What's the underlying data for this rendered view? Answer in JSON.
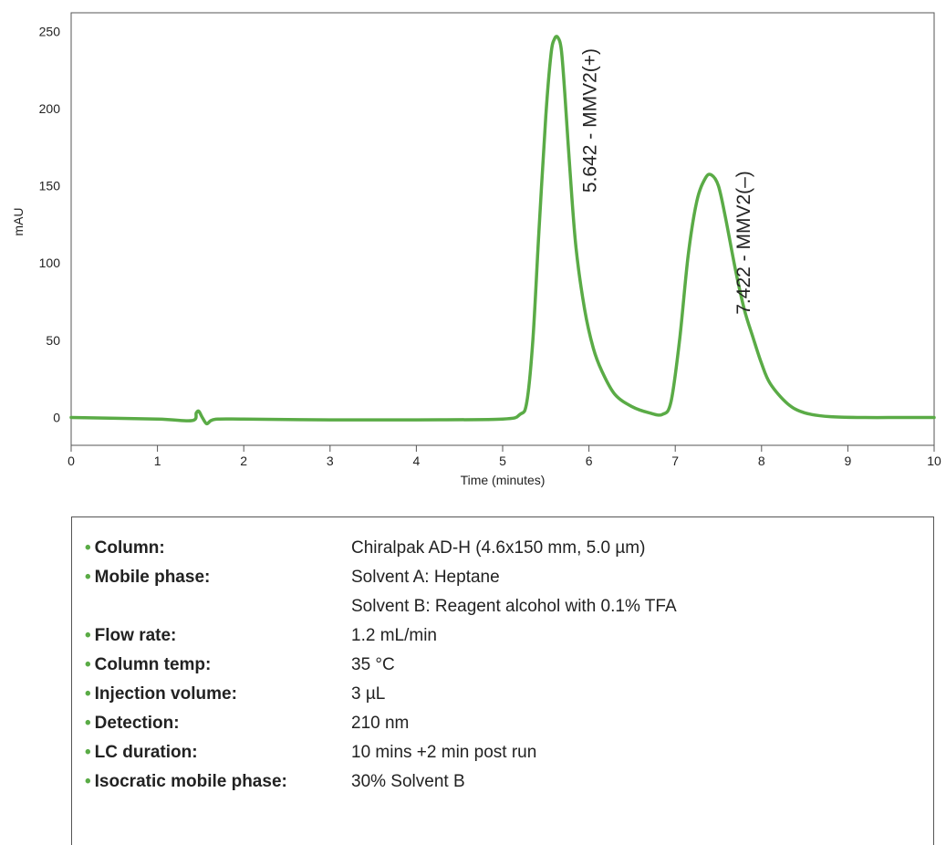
{
  "chart_data": {
    "type": "line",
    "xlabel": "Time (minutes)",
    "ylabel": "mAU",
    "xlim": [
      0,
      10
    ],
    "ylim": [
      -18,
      262
    ],
    "x_ticks": [
      0,
      1,
      2,
      3,
      4,
      5,
      6,
      7,
      8,
      9,
      10
    ],
    "y_ticks": [
      0,
      50,
      100,
      150,
      200,
      250
    ],
    "grid": false,
    "line_color": "#5aab46",
    "series": [
      {
        "x": [
          0,
          1.0,
          1.4,
          1.45,
          1.48,
          1.52,
          1.57,
          1.62,
          1.7,
          2,
          3,
          4,
          5,
          5.2,
          5.28,
          5.35,
          5.42,
          5.5,
          5.56,
          5.6,
          5.64,
          5.68,
          5.72,
          5.78,
          5.85,
          5.95,
          6.05,
          6.15,
          6.3,
          6.5,
          6.7,
          6.85,
          6.95,
          7.05,
          7.15,
          7.25,
          7.35,
          7.42,
          7.5,
          7.58,
          7.7,
          7.8,
          7.9,
          8.0,
          8.1,
          8.3,
          8.5,
          8.8,
          9.2,
          9.6,
          10
        ],
        "y": [
          0,
          -1,
          -2,
          3,
          4,
          0,
          -4,
          -2,
          -1,
          -1,
          -1.5,
          -1.5,
          -1,
          2,
          10,
          50,
          120,
          195,
          235,
          245,
          246,
          238,
          210,
          160,
          110,
          70,
          45,
          30,
          15,
          7,
          3,
          2,
          10,
          50,
          105,
          140,
          155,
          157,
          150,
          130,
          95,
          70,
          52,
          35,
          22,
          9,
          3,
          0.5,
          0,
          0,
          0
        ]
      }
    ],
    "annotations": [
      {
        "text": "5.642 - MMV2(+)",
        "x": 5.642,
        "y": 246
      },
      {
        "text": "7.422 - MMV2(–)",
        "x": 7.422,
        "y": 157
      }
    ]
  },
  "conditions": [
    {
      "label": "Column:",
      "value": "Chiralpak AD-H (4.6x150 mm, 5.0 µm)"
    },
    {
      "label": "Mobile phase:",
      "value": "Solvent A: Heptane"
    },
    {
      "label": "",
      "value": "Solvent B: Reagent alcohol with 0.1% TFA"
    },
    {
      "label": "Flow rate:",
      "value": "1.2 mL/min"
    },
    {
      "label": "Column temp:",
      "value": "35 °C"
    },
    {
      "label": "Injection volume:",
      "value": "3 µL"
    },
    {
      "label": "Detection:",
      "value": "210 nm"
    },
    {
      "label": "LC duration:",
      "value": "10 mins +2 min post run"
    },
    {
      "label": "Isocratic mobile phase:",
      "value": "30% Solvent B"
    }
  ],
  "bullet": "•"
}
